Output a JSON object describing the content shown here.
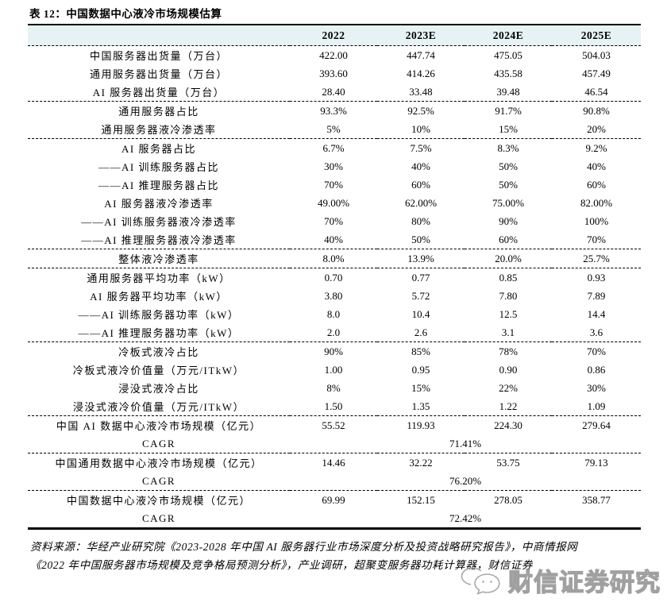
{
  "page": {
    "title": "表 12：中国数据中心液冷市场规模估算"
  },
  "table": {
    "columns": [
      "",
      "2022",
      "2023E",
      "2024E",
      "2025E"
    ],
    "groups": [
      {
        "rows": [
          {
            "label": "中国服务器出货量（万台）",
            "values": [
              "422.00",
              "447.74",
              "475.05",
              "504.03"
            ]
          },
          {
            "label": "通用服务器出货量（万台）",
            "values": [
              "393.60",
              "414.26",
              "435.58",
              "457.49"
            ]
          },
          {
            "label": "AI 服务器出货量（万台）",
            "values": [
              "28.40",
              "33.48",
              "39.48",
              "46.54"
            ]
          }
        ]
      },
      {
        "rows": [
          {
            "label": "通用服务器占比",
            "values": [
              "93.3%",
              "92.5%",
              "91.7%",
              "90.8%"
            ]
          },
          {
            "label": "通用服务器液冷渗透率",
            "values": [
              "5%",
              "10%",
              "15%",
              "20%"
            ]
          }
        ]
      },
      {
        "rows": [
          {
            "label": "AI 服务器占比",
            "values": [
              "6.7%",
              "7.5%",
              "8.3%",
              "9.2%"
            ]
          },
          {
            "label": "——AI 训练服务器占比",
            "values": [
              "30%",
              "40%",
              "50%",
              "40%"
            ]
          },
          {
            "label": "——AI 推理服务器占比",
            "values": [
              "70%",
              "60%",
              "50%",
              "60%"
            ]
          },
          {
            "label": "AI 服务器液冷渗透率",
            "values": [
              "49.00%",
              "62.00%",
              "75.00%",
              "82.00%"
            ]
          },
          {
            "label": "——AI 训练服务器液冷渗透率",
            "values": [
              "70%",
              "80%",
              "90%",
              "100%"
            ]
          },
          {
            "label": "——AI 推理服务器液冷渗透率",
            "values": [
              "40%",
              "50%",
              "60%",
              "70%"
            ]
          }
        ]
      },
      {
        "rows": [
          {
            "label": "整体液冷渗透率",
            "values": [
              "8.0%",
              "13.9%",
              "20.0%",
              "25.7%"
            ]
          }
        ]
      },
      {
        "rows": [
          {
            "label": "通用服务器平均功率（kW）",
            "values": [
              "0.70",
              "0.77",
              "0.85",
              "0.93"
            ]
          },
          {
            "label": "AI 服务器平均功率（kW）",
            "values": [
              "3.80",
              "5.72",
              "7.80",
              "7.89"
            ]
          },
          {
            "label": "——AI 训练服务器功率（kW）",
            "values": [
              "8.0",
              "10.4",
              "12.5",
              "14.4"
            ]
          },
          {
            "label": "——AI 推理服务器功率（kW）",
            "values": [
              "2.0",
              "2.6",
              "3.1",
              "3.6"
            ]
          }
        ]
      },
      {
        "rows": [
          {
            "label": "冷板式液冷占比",
            "values": [
              "90%",
              "85%",
              "78%",
              "70%"
            ]
          },
          {
            "label": "冷板式液冷价值量（万元/ITkW）",
            "values": [
              "1.00",
              "0.95",
              "0.90",
              "0.86"
            ]
          },
          {
            "label": "浸没式液冷占比",
            "values": [
              "8%",
              "15%",
              "22%",
              "30%"
            ]
          },
          {
            "label": "浸没式液冷价值量（万元/ITkW）",
            "values": [
              "1.50",
              "1.35",
              "1.22",
              "1.09"
            ]
          }
        ]
      },
      {
        "rows": [
          {
            "label": "中国 AI 数据中心液冷市场规模（亿元）",
            "values": [
              "55.52",
              "119.93",
              "224.30",
              "279.64"
            ]
          },
          {
            "label": "CAGR",
            "span_value": "71.41%"
          }
        ]
      },
      {
        "rows": [
          {
            "label": "中国通用数据中心液冷市场规模（亿元）",
            "values": [
              "14.46",
              "32.22",
              "53.75",
              "79.13"
            ]
          },
          {
            "label": "CAGR",
            "span_value": "76.20%"
          }
        ]
      },
      {
        "rows": [
          {
            "label": "中国数据中心液冷市场规模（亿元）",
            "values": [
              "69.99",
              "152.15",
              "278.05",
              "358.77"
            ]
          },
          {
            "label": "CAGR",
            "span_value": "72.42%"
          }
        ]
      }
    ]
  },
  "footer": {
    "line1": "资料来源：华经产业研究院《2023-2028 年中国 AI 服务器行业市场深度分析及投资战略研究报告》，中商情报网",
    "line2": "《2022 年中国服务器市场规模及竞争格局预测分析》，产业调研，超聚变服务器功耗计算器，财信证券"
  },
  "watermark": {
    "text": "财信证券研究",
    "logo": "wechat-bubbles-icon"
  },
  "colors": {
    "header_bg": "#e6f2f3",
    "border": "#000000",
    "watermark_gray": "#a0a0a0"
  }
}
